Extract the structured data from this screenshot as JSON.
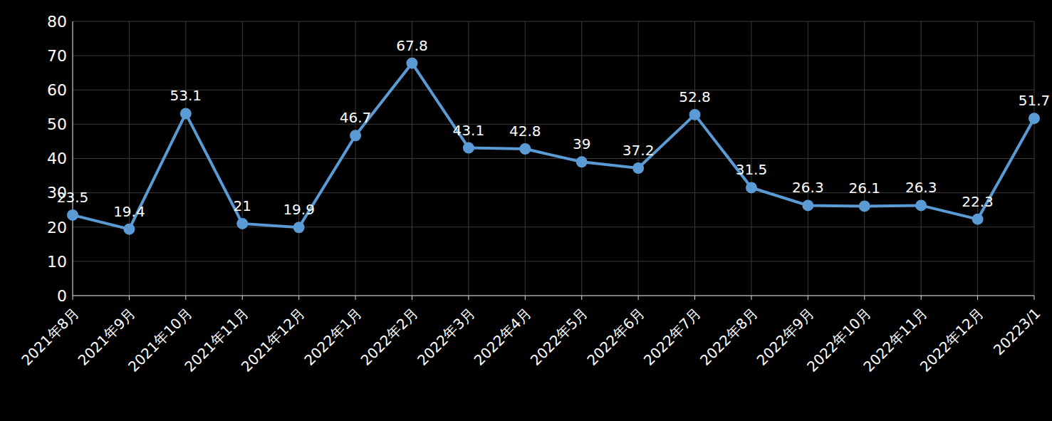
{
  "chart_data": {
    "type": "line",
    "categories": [
      "2021年8月",
      "2021年9月",
      "2021年10月",
      "2021年11月",
      "2021年12月",
      "2022年1月",
      "2022年2月",
      "2022年3月",
      "2022年4月",
      "2022年5月",
      "2022年6月",
      "2022年7月",
      "2022年8月",
      "2022年9月",
      "2022年10月",
      "2022年11月",
      "2022年12月",
      "20223/1"
    ],
    "values": [
      23.5,
      19.4,
      53.1,
      21,
      19.9,
      46.7,
      67.8,
      43.1,
      42.8,
      39,
      37.2,
      52.8,
      31.5,
      26.3,
      26.1,
      26.3,
      22.3,
      51.7
    ],
    "color": "#5b9bd5",
    "ylim": [
      0,
      80
    ],
    "yticks": [
      0,
      10,
      20,
      30,
      40,
      50,
      60,
      70,
      80
    ],
    "grid": true,
    "data_labels": true,
    "marker": "circle"
  }
}
